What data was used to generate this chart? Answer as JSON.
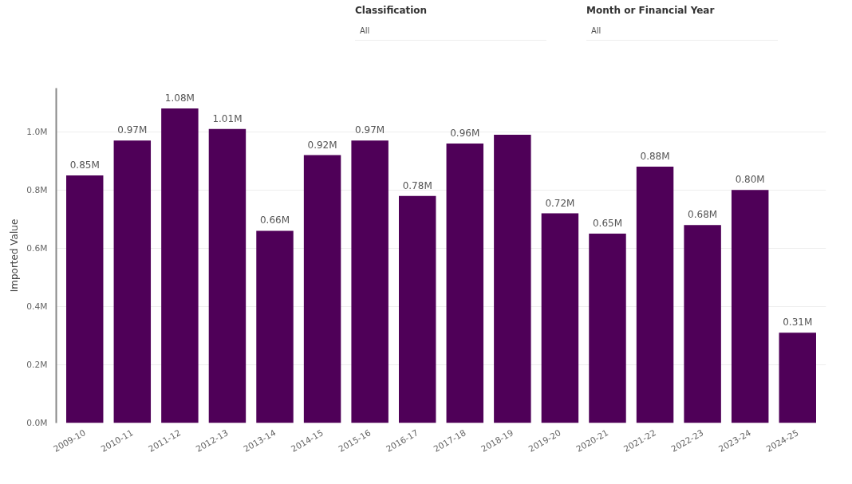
{
  "chart_data": {
    "type": "bar",
    "ylabel": "Imported Value",
    "annotations": [
      "Classification",
      "All",
      "Month or Financial Year",
      "All"
    ],
    "categories": [
      "2009-10",
      "2010-11",
      "2011-12",
      "2012-13",
      "2013-14",
      "2014-15",
      "2015-16",
      "2016-17",
      "2017-18",
      "2018-19",
      "2019-20",
      "2020-21",
      "2021-22",
      "2022-23",
      "2023-24",
      "2024-25"
    ],
    "values": [
      0.85,
      0.97,
      1.08,
      1.01,
      0.66,
      0.92,
      0.97,
      0.78,
      0.96,
      0.99,
      0.72,
      0.65,
      0.88,
      0.68,
      0.8,
      0.31
    ],
    "value_labels": [
      "0.85M",
      "0.97M",
      "1.08M",
      "1.01M",
      "0.66M",
      "0.92M",
      "0.97M",
      "0.78M",
      "0.96M",
      null,
      "0.72M",
      "0.65M",
      "0.88M",
      "0.68M",
      "0.80M",
      "0.31M"
    ],
    "color": "#4f0058",
    "ylim": [
      0,
      1.15
    ],
    "yticks": [
      {
        "value": 0,
        "label": "0.0M"
      },
      {
        "value": 0.2,
        "label": "0.2M"
      },
      {
        "value": 0.4,
        "label": "0.4M"
      },
      {
        "value": 0.6,
        "label": "0.6M"
      },
      {
        "value": 0.8,
        "label": "0.8M"
      },
      {
        "value": 1.0,
        "label": "1.0M"
      }
    ],
    "grid": "y"
  }
}
